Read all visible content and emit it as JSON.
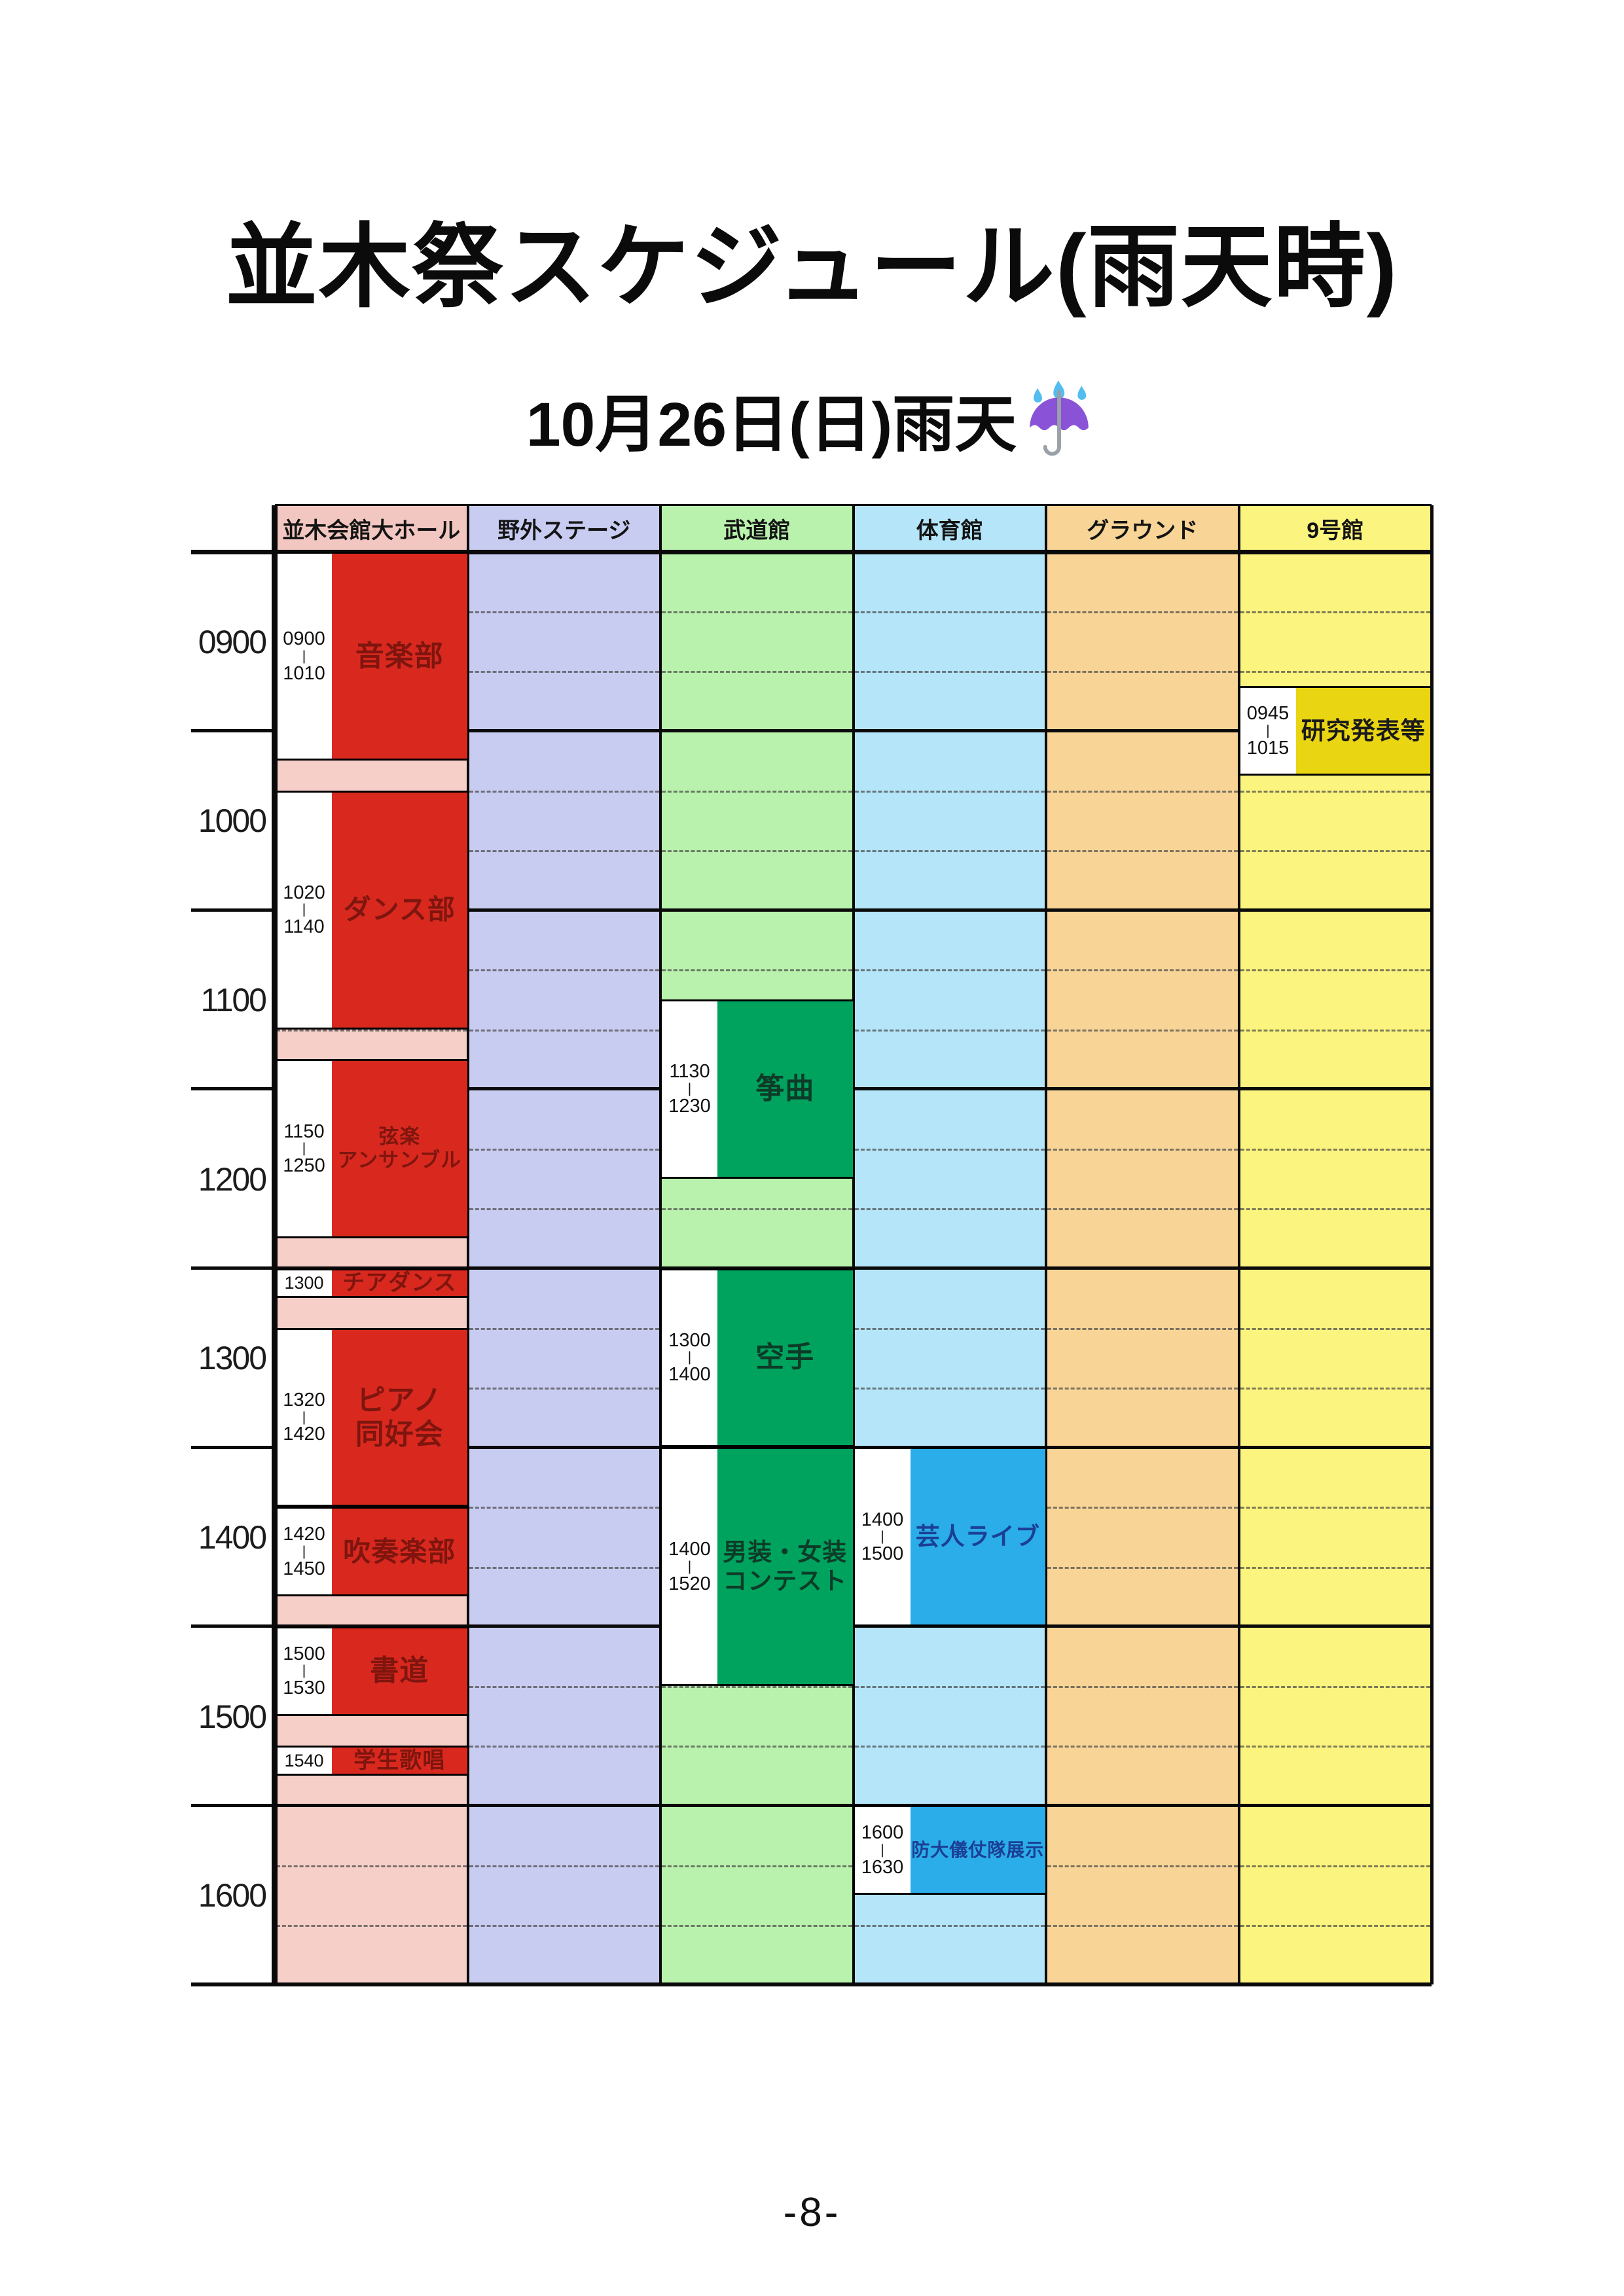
{
  "page": {
    "title": "並木祭スケジュール(雨天時)",
    "subtitle": "10月26日(日)雨天",
    "subtitle_emoji": "umbrella-with-rain-drops",
    "page_number": "-8-"
  },
  "schedule": {
    "axis_start": "0900",
    "axis_end": "1700",
    "hour_labels": [
      "0900",
      "1000",
      "1100",
      "1200",
      "1300",
      "1400",
      "1500",
      "1600"
    ],
    "grid_color": "#0a0a0a",
    "venues": [
      {
        "name": "並木会館大ホール",
        "header_color": "#f3c7c1",
        "base_color": "#f6cfc9",
        "event_color": "#d9291f",
        "event_text_color": "#7e150e",
        "events": [
          {
            "start": "0900",
            "end": "1010",
            "time_lines": [
              "0900",
              "1010"
            ],
            "name_lines": [
              "音楽部"
            ]
          },
          {
            "start": "1020",
            "end": "1140",
            "time_lines": [
              "1020",
              "1140"
            ],
            "name_lines": [
              "ダンス部"
            ]
          },
          {
            "start": "1150",
            "end": "1250",
            "time_lines": [
              "1150",
              "1250"
            ],
            "name_lines": [
              "弦楽",
              "アンサンブル"
            ]
          },
          {
            "start": "1300",
            "end": "1310",
            "time_lines": [
              "1300"
            ],
            "name_lines": [
              "チアダンス"
            ],
            "compact": true
          },
          {
            "start": "1320",
            "end": "1420",
            "time_lines": [
              "1320",
              "1420"
            ],
            "name_lines": [
              "ピアノ",
              "同好会"
            ]
          },
          {
            "start": "1420",
            "end": "1450",
            "time_lines": [
              "1420",
              "1450"
            ],
            "name_lines": [
              "吹奏楽部"
            ]
          },
          {
            "start": "1500",
            "end": "1530",
            "time_lines": [
              "1500",
              "1530"
            ],
            "name_lines": [
              "書道"
            ]
          },
          {
            "start": "1540",
            "end": "1550",
            "time_lines": [
              "1540"
            ],
            "name_lines": [
              "学生歌唱"
            ],
            "compact": true
          }
        ]
      },
      {
        "name": "野外ステージ",
        "header_color": "#c8ccf1",
        "base_color": "#c8ccf1",
        "events": []
      },
      {
        "name": "武道館",
        "header_color": "#b9f2ac",
        "base_color": "#b9f2ac",
        "event_color": "#00a35e",
        "event_text_color": "#0d3b28",
        "events": [
          {
            "start": "1130",
            "end": "1230",
            "time_lines": [
              "1130",
              "1230"
            ],
            "name_lines": [
              "筝曲"
            ]
          },
          {
            "start": "1300",
            "end": "1400",
            "time_lines": [
              "1300",
              "1400"
            ],
            "name_lines": [
              "空手"
            ]
          },
          {
            "start": "1400",
            "end": "1520",
            "time_lines": [
              "1400",
              "1520"
            ],
            "name_lines": [
              "男装・女装",
              "コンテスト"
            ]
          }
        ]
      },
      {
        "name": "体育館",
        "header_color": "#b4e5f9",
        "base_color": "#b4e5f9",
        "event_color": "#2badea",
        "event_text_color": "#1b3f94",
        "events": [
          {
            "start": "1400",
            "end": "1500",
            "time_lines": [
              "1400",
              "1500"
            ],
            "name_lines": [
              "芸人ライブ"
            ]
          },
          {
            "start": "1600",
            "end": "1630",
            "time_lines": [
              "1600",
              "1630"
            ],
            "name_lines": [
              "防大儀仗隊展示"
            ]
          }
        ]
      },
      {
        "name": "グラウンド",
        "header_color": "#f8d596",
        "base_color": "#f8d596",
        "events": []
      },
      {
        "name": "9号館",
        "header_color": "#fbf47e",
        "base_color": "#fbf47e",
        "event_color": "#e9d512",
        "event_text_color": "#1a1a1a",
        "events": [
          {
            "start": "0945",
            "end": "1015",
            "time_lines": [
              "0945",
              "1015"
            ],
            "name_lines": [
              "研究発表等"
            ]
          }
        ]
      }
    ]
  }
}
